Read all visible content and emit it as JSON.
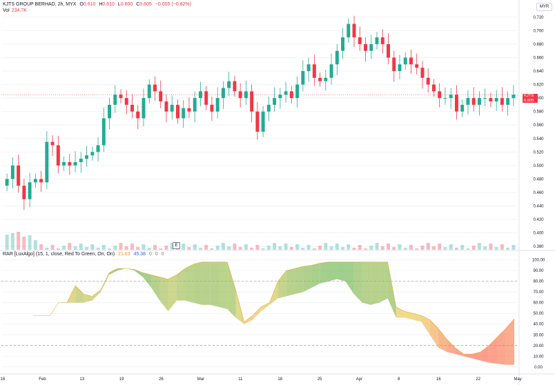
{
  "header": {
    "symbol": "KJTS GROUP BERHAD, 2h, MYX",
    "open_label": "O",
    "open": "0.610",
    "high_label": "H",
    "high": "0.610",
    "low_label": "L",
    "low": "0.600",
    "close_label": "C",
    "close": "0.605",
    "change": "−0.005 (−0.82%)",
    "vol_label": "Vol",
    "vol": "234.7K",
    "currency": "MYR"
  },
  "price_tag": {
    "symbol": "KJTS",
    "price": "0.605",
    "countdown": "01:20:47"
  },
  "event_badge": "E",
  "indicator_legend": {
    "name": "RAR [LuxAlgo] (15, 1, close, Red To Green, On, On)",
    "v1": "21.63",
    "v2": "45.38",
    "v3": "0",
    "v4": "0",
    "v5": "0"
  },
  "colors": {
    "up": "#22ab94",
    "down": "#f23645",
    "rar_low": "#ff5252",
    "rar_high": "#4caf50",
    "grid": "#f0f3fa",
    "axis_text": "#131722"
  },
  "x_axis": {
    "labels": [
      "16",
      "Feb",
      "13",
      "19",
      "26",
      "Mar",
      "11",
      "18",
      "25",
      "Apr",
      "8",
      "16",
      "22",
      "May"
    ]
  },
  "chart_data": [
    {
      "type": "candlestick",
      "title": "KJTS GROUP BERHAD, 2h, MYX",
      "y_ticks": [
        "0.720",
        "0.700",
        "0.680",
        "0.660",
        "0.640",
        "0.620",
        "0.600",
        "0.580",
        "0.560",
        "0.540",
        "0.520",
        "0.500",
        "0.480",
        "0.460",
        "0.440",
        "0.420",
        "0.400",
        "0.380"
      ],
      "ylim": [
        0.375,
        0.727
      ],
      "current_price": 0.605,
      "close": [
        0.48,
        0.5,
        0.47,
        0.45,
        0.475,
        0.48,
        0.475,
        0.535,
        0.53,
        0.5,
        0.505,
        0.5,
        0.505,
        0.51,
        0.515,
        0.52,
        0.53,
        0.57,
        0.59,
        0.605,
        0.6,
        0.59,
        0.58,
        0.57,
        0.6,
        0.62,
        0.61,
        0.595,
        0.58,
        0.59,
        0.57,
        0.585,
        0.58,
        0.6,
        0.61,
        0.59,
        0.58,
        0.6,
        0.615,
        0.625,
        0.61,
        0.6,
        0.61,
        0.58,
        0.55,
        0.58,
        0.59,
        0.6,
        0.605,
        0.61,
        0.6,
        0.62,
        0.64,
        0.65,
        0.63,
        0.625,
        0.63,
        0.65,
        0.67,
        0.69,
        0.71,
        0.69,
        0.68,
        0.67,
        0.68,
        0.69,
        0.68,
        0.66,
        0.64,
        0.65,
        0.66,
        0.65,
        0.645,
        0.63,
        0.62,
        0.61,
        0.6,
        0.6,
        0.605,
        0.58,
        0.59,
        0.6,
        0.59,
        0.6,
        0.6,
        0.595,
        0.6,
        0.59,
        0.6,
        0.605
      ],
      "volume_note": "volume bars shown under price pane"
    },
    {
      "type": "area",
      "title": "RAR [LuxAlgo] (15, 1, close, Red To Green, On, On)",
      "y_ticks": [
        "100.00",
        "90.00",
        "80.00",
        "70.00",
        "60.00",
        "50.00",
        "40.00",
        "30.00",
        "20.00",
        "10.00",
        "0.00"
      ],
      "ylim": [
        -4,
        103
      ],
      "levels": [
        80,
        20
      ],
      "upper": [
        48,
        48,
        48,
        60,
        60,
        76,
        68,
        66,
        72,
        88,
        92,
        92,
        91,
        88,
        86,
        84,
        82,
        86,
        92,
        96,
        98,
        98,
        98,
        98,
        72,
        42,
        48,
        56,
        60,
        80,
        90,
        92,
        94,
        95,
        97,
        98,
        98,
        98,
        98,
        98,
        98,
        98,
        98,
        56,
        52,
        50,
        48,
        44,
        36,
        26,
        18,
        12,
        12,
        14,
        20,
        28,
        36,
        45
      ],
      "lower": [
        48,
        48,
        48,
        60,
        60,
        60,
        60,
        62,
        70,
        86,
        90,
        92,
        90,
        84,
        74,
        62,
        52,
        62,
        62,
        60,
        58,
        58,
        56,
        54,
        46,
        40,
        44,
        52,
        58,
        64,
        66,
        68,
        70,
        74,
        78,
        80,
        82,
        80,
        68,
        60,
        58,
        60,
        64,
        46,
        46,
        44,
        42,
        30,
        18,
        14,
        12,
        10,
        8,
        6,
        4,
        3,
        2,
        2
      ]
    }
  ]
}
